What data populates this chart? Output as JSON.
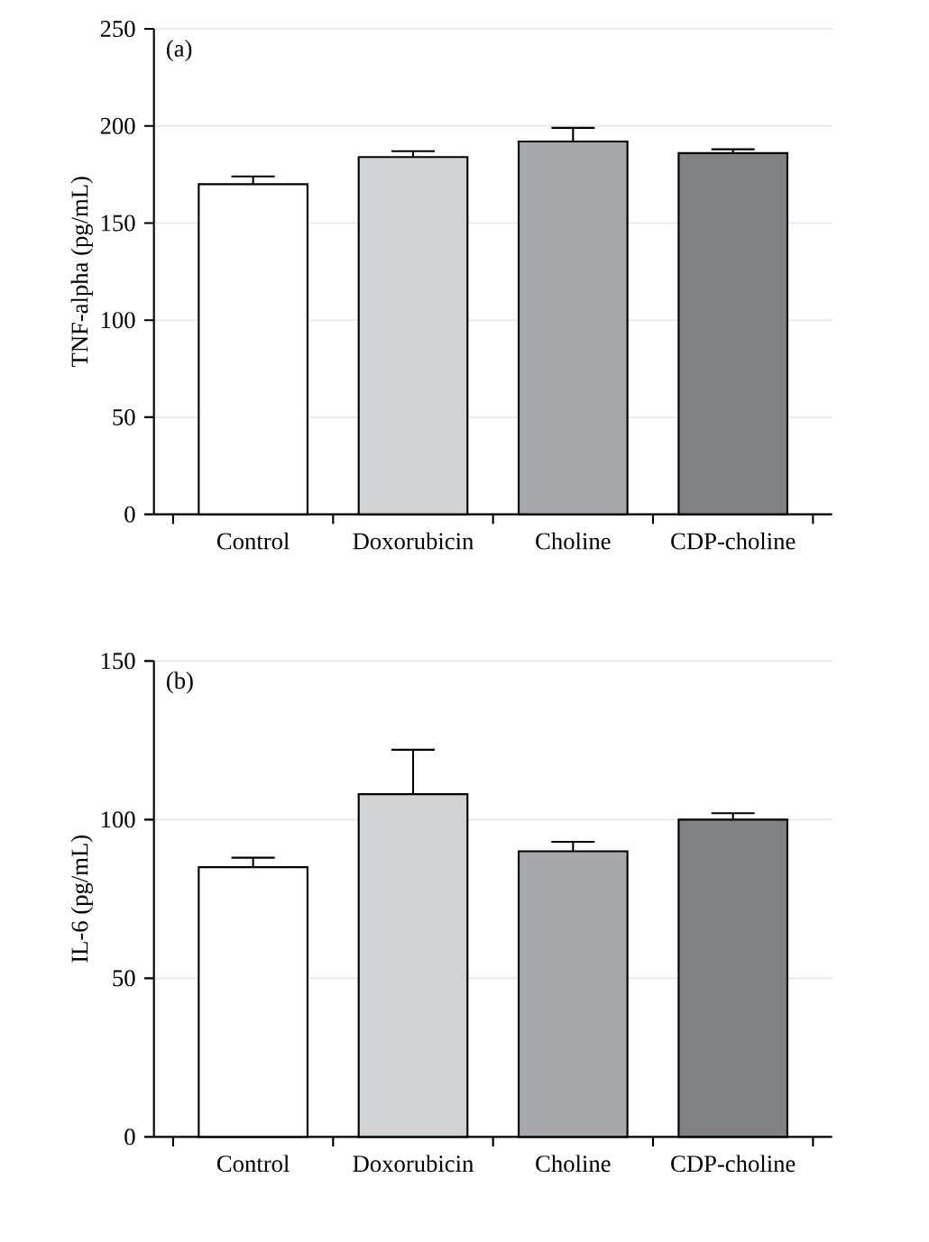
{
  "chart_data": [
    {
      "type": "bar",
      "ylabel": "TNF-alpha (pg/mL)",
      "annotations": [
        "(a)"
      ],
      "categories": [
        "Control",
        "Doxorubicin",
        "Choline",
        "CDP-choline"
      ],
      "values": [
        170,
        184,
        192,
        186
      ],
      "errors": [
        [
          170,
          174
        ],
        [
          184,
          187
        ],
        [
          192,
          199
        ],
        [
          186,
          188
        ]
      ],
      "colors": [
        "#ffffff",
        "#d1d2d4",
        "#a7a8ac",
        "#808184"
      ],
      "ylim": [
        0,
        250
      ],
      "yticks": [
        0,
        50,
        100,
        150,
        200,
        250
      ],
      "grid": "y"
    },
    {
      "type": "bar",
      "ylabel": "IL-6 (pg/mL)",
      "annotations": [
        "(b)"
      ],
      "categories": [
        "Control",
        "Doxorubicin",
        "Choline",
        "CDP-choline"
      ],
      "values": [
        85,
        108,
        90,
        100
      ],
      "errors": [
        [
          85,
          88
        ],
        [
          108,
          122
        ],
        [
          90,
          93
        ],
        [
          100,
          102
        ]
      ],
      "colors": [
        "#ffffff",
        "#d1d2d4",
        "#a7a8ac",
        "#808184"
      ],
      "ylim": [
        0,
        150
      ],
      "yticks": [
        0,
        50,
        100,
        150
      ],
      "grid": "y"
    }
  ]
}
